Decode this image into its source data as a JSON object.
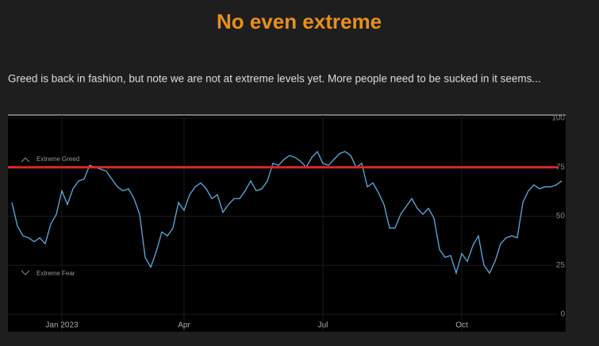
{
  "chart_data": {
    "type": "line",
    "title": "No even extreme",
    "subtitle": "Greed is back in fashion, but note we are not at extreme levels yet. More people need to be sucked in it seems...",
    "series": [
      {
        "color": "#5aaee0",
        "values": [
          57,
          45,
          40,
          39,
          37,
          39,
          36,
          46,
          51,
          63,
          56,
          64,
          68,
          69,
          76,
          75,
          74,
          73,
          69,
          65,
          63,
          64,
          59,
          51,
          29,
          24,
          32,
          42,
          40,
          44,
          57,
          53,
          61,
          65,
          67,
          64,
          59,
          61,
          52,
          56,
          59,
          59,
          63,
          68,
          63,
          64,
          68,
          77,
          76,
          79,
          81,
          80,
          78,
          75,
          80,
          83,
          77,
          76,
          79,
          82,
          83,
          81,
          75,
          77,
          65,
          67,
          62,
          56,
          44,
          44,
          51,
          55,
          59,
          54,
          51,
          54,
          49,
          33,
          29,
          30,
          21,
          31,
          27,
          35,
          40,
          25,
          21,
          27,
          36,
          39,
          40,
          39,
          57,
          63,
          66,
          64,
          65,
          65,
          66,
          68
        ]
      }
    ],
    "xlim": [
      0,
      99
    ],
    "xticks": [
      {
        "value": 9,
        "label": "Jan 2023"
      },
      {
        "value": 31,
        "label": "Apr"
      },
      {
        "value": 56,
        "label": "Jul"
      },
      {
        "value": 81,
        "label": "Oct"
      }
    ],
    "ylim": [
      0,
      100
    ],
    "yticks": [
      0,
      25,
      50,
      75,
      100
    ],
    "grid": true,
    "reference_line": {
      "value": 75,
      "color": "#e02626"
    },
    "annotations": [
      "Extreme Greed",
      "Extreme Fear"
    ]
  }
}
